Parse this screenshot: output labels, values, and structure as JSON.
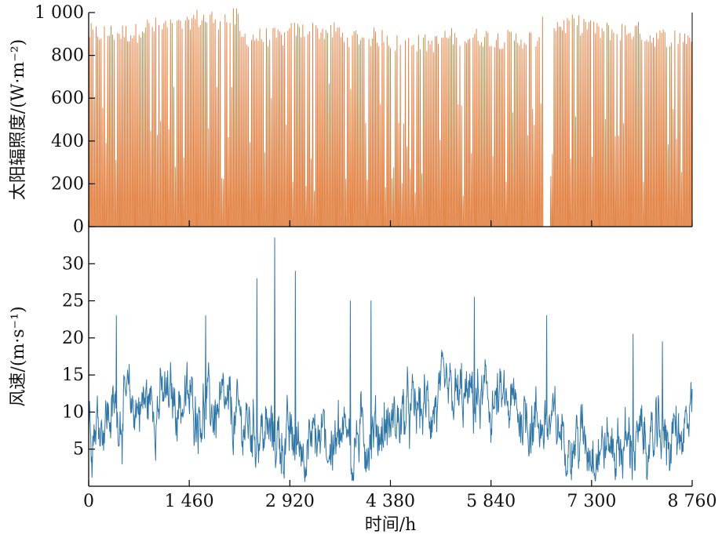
{
  "chart_data": [
    {
      "type": "line",
      "ylabel": "太阳辐照度/(W·m⁻²)",
      "xlabel": "",
      "xlim": [
        0,
        8760
      ],
      "ylim": [
        0,
        1000
      ],
      "yticks": [
        0,
        200,
        400,
        600,
        800,
        1000
      ],
      "ytick_labels": [
        "0",
        "200",
        "400",
        "600",
        "800",
        "1 000"
      ],
      "grid": false,
      "series": [
        {
          "color": "#e07b39",
          "daily_peaks": [
            {
              "x_range": [
                0,
                730
              ],
              "peak": 950
            },
            {
              "x_range": [
                730,
                1460
              ],
              "peak": 980
            },
            {
              "x_range": [
                1460,
                2190
              ],
              "peak": 1020
            },
            {
              "x_range": [
                2190,
                2920
              ],
              "peak": 930
            },
            {
              "x_range": [
                2920,
                3650
              ],
              "peak": 960
            },
            {
              "x_range": [
                3650,
                4380
              ],
              "peak": 930
            },
            {
              "x_range": [
                4380,
                5110
              ],
              "peak": 900
            },
            {
              "x_range": [
                5110,
                5840
              ],
              "peak": 930
            },
            {
              "x_range": [
                5840,
                6570
              ],
              "peak": 920
            },
            {
              "x_range": [
                6570,
                7300
              ],
              "peak": 990
            },
            {
              "x_range": [
                7300,
                8030
              ],
              "peak": 960
            },
            {
              "x_range": [
                8030,
                8760
              ],
              "peak": 930
            }
          ]
        }
      ]
    },
    {
      "type": "line",
      "ylabel": "风速/(m·s⁻¹)",
      "xlabel": "时间/h",
      "xlim": [
        0,
        8760
      ],
      "ylim": [
        0,
        35
      ],
      "yticks": [
        5,
        10,
        15,
        20,
        25,
        30
      ],
      "ytick_labels": [
        "5",
        "10",
        "15",
        "20",
        "25",
        "30"
      ],
      "xticks": [
        0,
        1460,
        2920,
        4380,
        5840,
        7300,
        8760
      ],
      "xtick_labels": [
        "0",
        "1 460",
        "2 920",
        "4 380",
        "5 840",
        "7 300",
        "8 760"
      ],
      "grid": false,
      "series": [
        {
          "color": "#2f76a6",
          "mean": 9,
          "peaks": [
            {
              "x": 400,
              "y": 23
            },
            {
              "x": 1700,
              "y": 23
            },
            {
              "x": 2440,
              "y": 28
            },
            {
              "x": 2700,
              "y": 33.5
            },
            {
              "x": 3000,
              "y": 29
            },
            {
              "x": 3800,
              "y": 25
            },
            {
              "x": 4100,
              "y": 25
            },
            {
              "x": 5600,
              "y": 25.5
            },
            {
              "x": 6650,
              "y": 23
            },
            {
              "x": 7900,
              "y": 20.5
            },
            {
              "x": 8330,
              "y": 19.5
            }
          ]
        }
      ]
    }
  ]
}
